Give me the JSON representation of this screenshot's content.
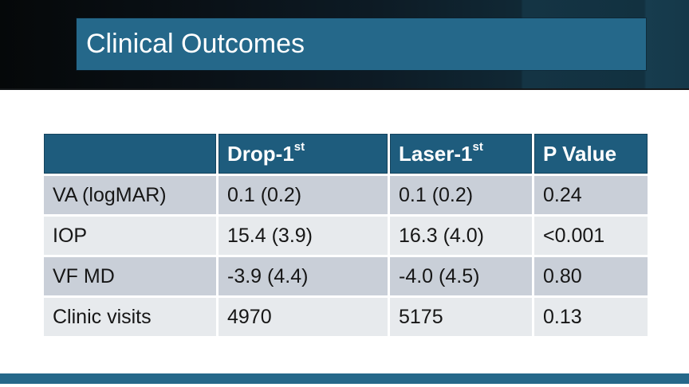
{
  "slide": {
    "title": "Clinical Outcomes"
  },
  "theme": {
    "accent_teal": "#25688A",
    "table_header_teal": "#1E5C7D",
    "row_band_dark": "#C9CFD8",
    "row_band_light": "#E7EAED",
    "top_band_gradient_left": "#050809",
    "top_band_gradient_right": "#153849"
  },
  "table": {
    "columns": [
      {
        "label": "",
        "sup": ""
      },
      {
        "label": "Drop-1",
        "sup": "st"
      },
      {
        "label": "Laser-1",
        "sup": "st"
      },
      {
        "label": "P Value",
        "sup": ""
      }
    ],
    "rows": [
      {
        "label": "VA (logMAR)",
        "drop": "0.1 (0.2)",
        "laser": "0.1 (0.2)",
        "p": "0.24"
      },
      {
        "label": "IOP",
        "drop": "15.4 (3.9)",
        "laser": "16.3 (4.0)",
        "p": "<0.001"
      },
      {
        "label": "VF MD",
        "drop": "-3.9 (4.4)",
        "laser": "-4.0 (4.5)",
        "p": "0.80"
      },
      {
        "label": "Clinic visits",
        "drop": "4970",
        "laser": "5175",
        "p": "0.13"
      }
    ]
  }
}
